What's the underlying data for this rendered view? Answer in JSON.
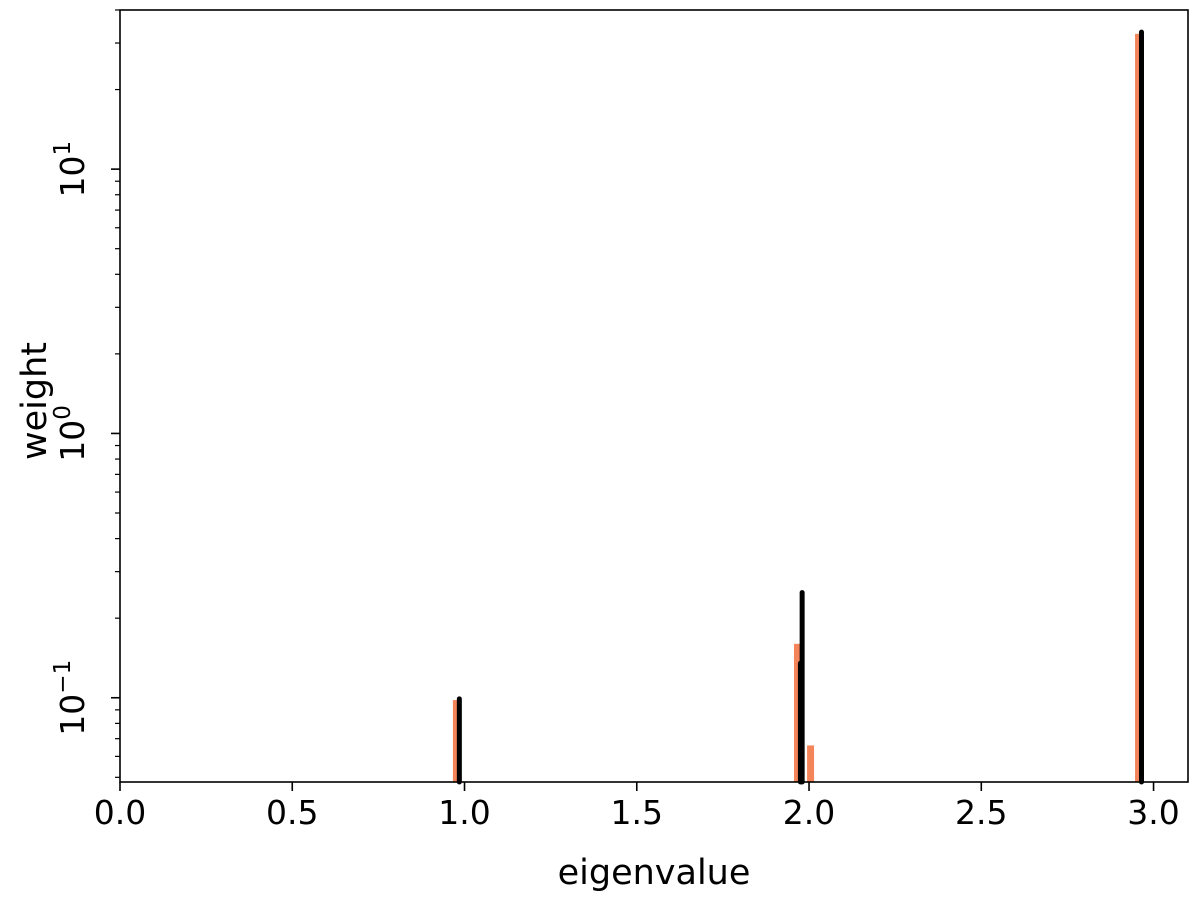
{
  "chart_data": {
    "type": "bar",
    "title": "",
    "xlabel": "eigenvalue",
    "ylabel": "weight",
    "x_scale": "linear",
    "y_scale": "log",
    "xlim": [
      0.0,
      3.1
    ],
    "ylim": [
      0.048,
      40
    ],
    "grid": false,
    "legend": "none",
    "x_ticks": [
      "0.0",
      "0.5",
      "1.0",
      "1.5",
      "2.0",
      "2.5",
      "3.0"
    ],
    "x_tick_values": [
      0.0,
      0.5,
      1.0,
      1.5,
      2.0,
      2.5,
      3.0
    ],
    "y_ticks": [
      {
        "value": 0.1,
        "base": "10",
        "exp": "−1"
      },
      {
        "value": 1,
        "base": "10",
        "exp": "0"
      },
      {
        "value": 10,
        "base": "10",
        "exp": "1"
      }
    ],
    "series": [
      {
        "color": "#f4845a",
        "style": "bars",
        "points": [
          {
            "x": 0.975,
            "y": 0.098
          },
          {
            "x": 1.965,
            "y": 0.16
          },
          {
            "x": 2.003,
            "y": 0.066
          },
          {
            "x": 2.955,
            "y": 32.5
          }
        ]
      },
      {
        "color": "#000000",
        "style": "lines",
        "points": [
          {
            "x": 0.985,
            "y": 0.099
          },
          {
            "x": 1.975,
            "y": 0.135
          },
          {
            "x": 1.98,
            "y": 0.25
          },
          {
            "x": 2.965,
            "y": 33.0
          }
        ]
      }
    ]
  }
}
